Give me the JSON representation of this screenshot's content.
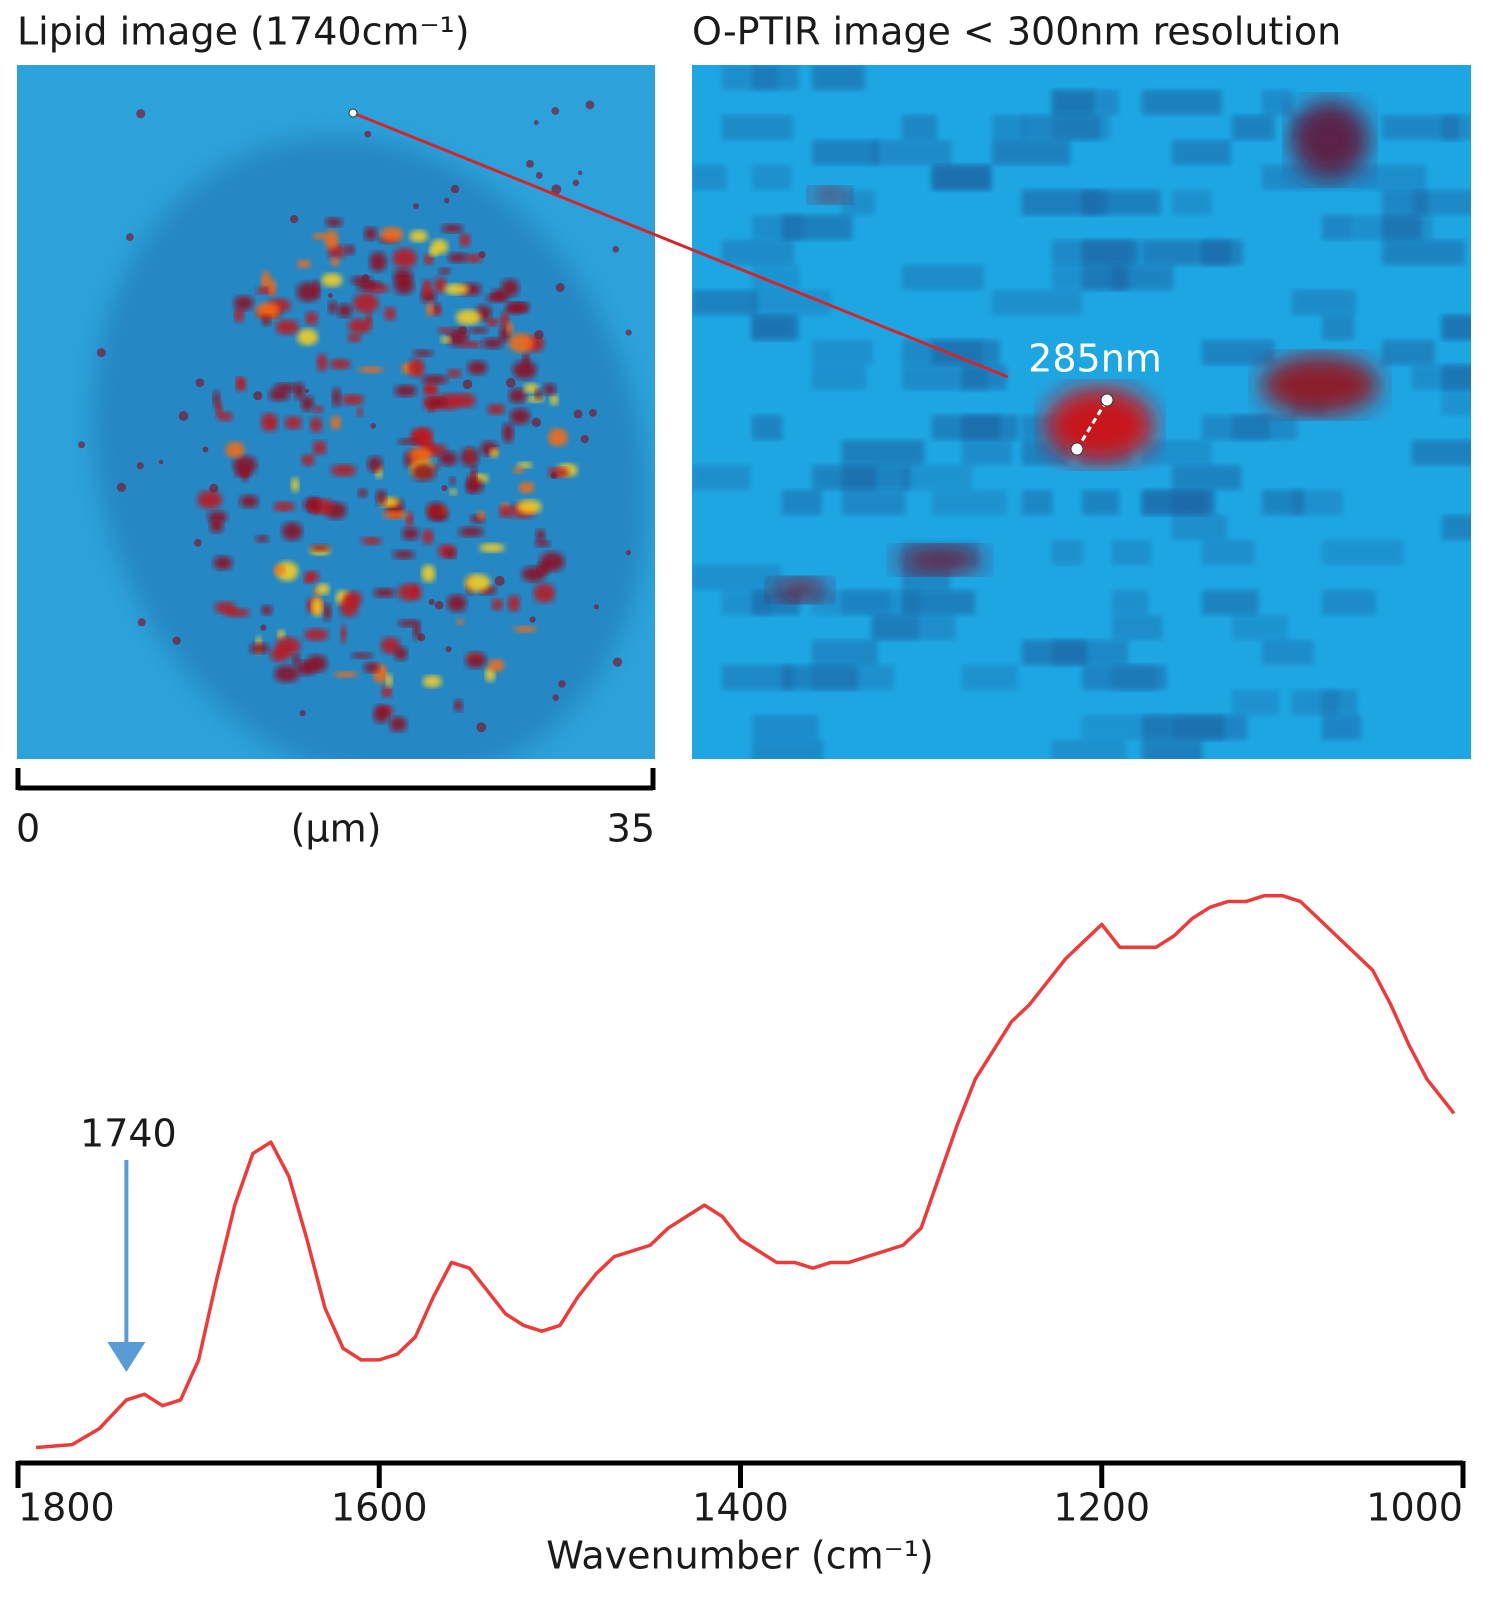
{
  "chart_data": [
    {
      "type": "image",
      "title": "Lipid image (1740cm⁻¹)",
      "xlabel": "(μm)",
      "xlim": [
        0,
        35
      ],
      "xticks": [
        0,
        35
      ]
    },
    {
      "type": "image",
      "title": "O-PTIR image < 300nm resolution",
      "annotation": "285nm"
    },
    {
      "type": "line",
      "xlabel": "Wavenumber (cm⁻¹)",
      "color": "#ec3b3b",
      "x": [
        1790,
        1770,
        1755,
        1740,
        1730,
        1720,
        1710,
        1700,
        1690,
        1680,
        1670,
        1660,
        1650,
        1640,
        1630,
        1620,
        1610,
        1600,
        1590,
        1580,
        1570,
        1560,
        1550,
        1540,
        1530,
        1520,
        1510,
        1500,
        1490,
        1480,
        1470,
        1460,
        1450,
        1440,
        1430,
        1420,
        1410,
        1400,
        1390,
        1380,
        1370,
        1360,
        1350,
        1340,
        1330,
        1320,
        1310,
        1300,
        1290,
        1280,
        1270,
        1260,
        1250,
        1240,
        1230,
        1220,
        1210,
        1200,
        1190,
        1180,
        1170,
        1160,
        1150,
        1140,
        1130,
        1120,
        1110,
        1100,
        1090,
        1080,
        1070,
        1060,
        1050,
        1040,
        1030,
        1020,
        1010,
        1005
      ],
      "values": [
        0.027,
        0.032,
        0.06,
        0.11,
        0.12,
        0.1,
        0.11,
        0.18,
        0.32,
        0.45,
        0.54,
        0.56,
        0.5,
        0.39,
        0.27,
        0.2,
        0.18,
        0.18,
        0.19,
        0.22,
        0.29,
        0.35,
        0.34,
        0.3,
        0.26,
        0.24,
        0.23,
        0.24,
        0.29,
        0.33,
        0.36,
        0.37,
        0.38,
        0.41,
        0.43,
        0.45,
        0.43,
        0.39,
        0.37,
        0.35,
        0.35,
        0.34,
        0.35,
        0.35,
        0.36,
        0.37,
        0.38,
        0.41,
        0.5,
        0.59,
        0.67,
        0.72,
        0.77,
        0.8,
        0.84,
        0.88,
        0.91,
        0.94,
        0.9,
        0.9,
        0.9,
        0.92,
        0.95,
        0.97,
        0.98,
        0.98,
        0.99,
        0.99,
        0.98,
        0.95,
        0.92,
        0.89,
        0.86,
        0.8,
        0.73,
        0.67,
        0.63,
        0.61
      ],
      "xlim": [
        1800,
        1000
      ],
      "xticks": [
        1800,
        1600,
        1400,
        1200,
        1000
      ],
      "ylim": [
        0,
        1
      ],
      "annotation": {
        "text": "1740",
        "x": 1740
      }
    }
  ]
}
